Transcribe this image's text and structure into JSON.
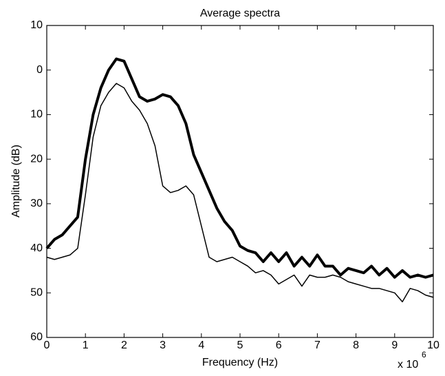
{
  "chart_data": {
    "type": "line",
    "title": "Average spectra",
    "x_label": "Frequency (Hz)",
    "y_label": "Amplitude (dB)",
    "x_scale_label": "x 10",
    "x_scale_exponent": "6",
    "x": [
      0,
      0.2,
      0.4,
      0.6,
      0.8,
      1,
      1.2,
      1.4,
      1.6,
      1.8,
      2,
      2.2,
      2.4,
      2.6,
      2.8,
      3,
      3.2,
      3.4,
      3.6,
      3.8,
      4,
      4.2,
      4.4,
      4.6,
      4.8,
      5,
      5.2,
      5.4,
      5.6,
      5.8,
      6,
      6.2,
      6.4,
      6.6,
      6.8,
      7,
      7.2,
      7.4,
      7.6,
      7.8,
      8,
      8.2,
      8.4,
      8.6,
      8.8,
      9,
      9.2,
      9.4,
      9.6,
      9.8,
      10
    ],
    "series": [
      {
        "color": "#000000",
        "width": 4,
        "values": [
          -40,
          -38,
          -37,
          -35,
          -33,
          -20,
          -10,
          -4,
          0,
          2.5,
          2,
          -2,
          -6,
          -7,
          -6.5,
          -5.5,
          -6,
          -8,
          -12,
          -19,
          -23,
          -27,
          -31,
          -34,
          -36,
          -39.5,
          -40.5,
          -41,
          -43,
          -41,
          -43,
          -41,
          -44,
          -42,
          -44,
          -41.5,
          -44,
          -44,
          -46,
          -44.5,
          -45,
          -45.5,
          -44,
          -46,
          -44.5,
          -46.5,
          -45,
          -46.5,
          -46,
          -46.5,
          -46
        ]
      },
      {
        "color": "#000000",
        "width": 1.5,
        "values": [
          -42,
          -42.5,
          -42,
          -41.5,
          -40,
          -28,
          -15,
          -8,
          -5,
          -3,
          -4,
          -7,
          -9,
          -12,
          -17,
          -26,
          -27.5,
          -27,
          -26,
          -28,
          -35,
          -42,
          -43,
          -42.5,
          -42,
          -43,
          -44,
          -45.5,
          -45,
          -46,
          -48,
          -47,
          -46,
          -48.5,
          -46,
          -46.5,
          -46.5,
          -46,
          -46.5,
          -47.5,
          -48,
          -48.5,
          -49,
          -49,
          -49.5,
          -50,
          -52,
          -49,
          -49.5,
          -50.5,
          -51
        ]
      }
    ],
    "xlim": [
      0,
      10
    ],
    "xticks": [
      0,
      1,
      2,
      3,
      4,
      5,
      6,
      7,
      8,
      9,
      10
    ],
    "ylim": [
      -60,
      10
    ],
    "yticks": [
      10,
      0,
      {
        "value": -10,
        "label": "10"
      },
      {
        "value": -20,
        "label": "20"
      },
      {
        "value": -30,
        "label": "30"
      },
      {
        "value": -40,
        "label": "40"
      },
      {
        "value": -50,
        "label": "50"
      },
      {
        "value": -60,
        "label": "60"
      }
    ],
    "grid": false
  }
}
